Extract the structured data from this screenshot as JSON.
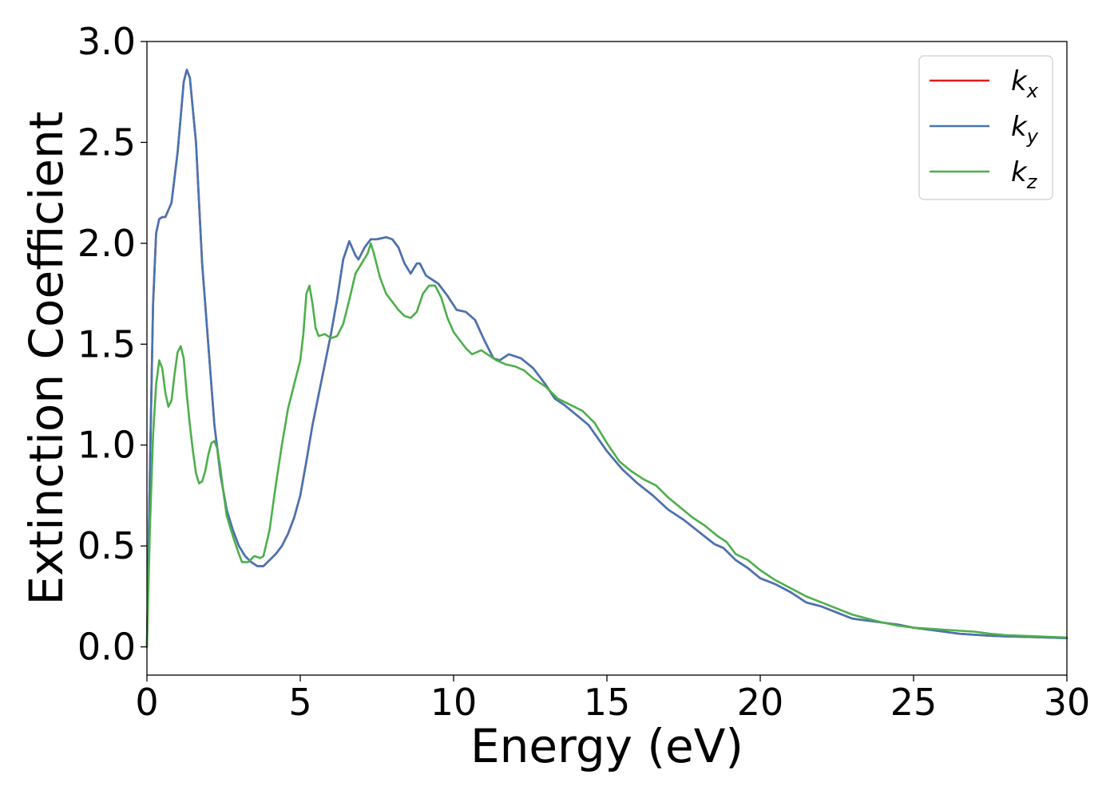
{
  "chart_data": {
    "type": "line",
    "xlabel": "Energy (eV)",
    "ylabel": "Extinction Coefficient",
    "xlim": [
      0,
      30
    ],
    "ylim": [
      -0.14,
      3.0
    ],
    "xticks": [
      0,
      5,
      10,
      15,
      20,
      25,
      30
    ],
    "xtick_labels": [
      "0",
      "5",
      "10",
      "15",
      "20",
      "25",
      "30"
    ],
    "yticks": [
      0.0,
      0.5,
      1.0,
      1.5,
      2.0,
      2.5,
      3.0
    ],
    "ytick_labels": [
      "0.0",
      "0.5",
      "1.0",
      "1.5",
      "2.0",
      "2.5",
      "3.0"
    ],
    "grid": false,
    "legend_position": "top-right",
    "series": [
      {
        "name": "k_x",
        "legend_base": "k",
        "legend_sub": "x",
        "color": "#e41a1c",
        "points": [
          [
            0,
            0
          ],
          [
            0.1,
            0.9
          ],
          [
            0.2,
            1.7
          ],
          [
            0.3,
            2.05
          ],
          [
            0.4,
            2.12
          ],
          [
            0.5,
            2.13
          ],
          [
            0.6,
            2.13
          ],
          [
            0.8,
            2.2
          ],
          [
            1.0,
            2.45
          ],
          [
            1.2,
            2.8
          ],
          [
            1.3,
            2.86
          ],
          [
            1.4,
            2.82
          ],
          [
            1.6,
            2.5
          ],
          [
            1.8,
            1.9
          ],
          [
            2.0,
            1.5
          ],
          [
            2.2,
            1.1
          ],
          [
            2.4,
            0.85
          ],
          [
            2.6,
            0.68
          ],
          [
            2.8,
            0.58
          ],
          [
            3.0,
            0.5
          ],
          [
            3.2,
            0.45
          ],
          [
            3.4,
            0.42
          ],
          [
            3.6,
            0.4
          ],
          [
            3.8,
            0.4
          ],
          [
            4.0,
            0.43
          ],
          [
            4.2,
            0.46
          ],
          [
            4.4,
            0.5
          ],
          [
            4.6,
            0.56
          ],
          [
            4.8,
            0.64
          ],
          [
            5.0,
            0.75
          ],
          [
            5.2,
            0.92
          ],
          [
            5.4,
            1.1
          ],
          [
            5.6,
            1.25
          ],
          [
            5.8,
            1.4
          ],
          [
            6.0,
            1.55
          ],
          [
            6.2,
            1.72
          ],
          [
            6.4,
            1.92
          ],
          [
            6.6,
            2.01
          ],
          [
            6.8,
            1.94
          ],
          [
            6.9,
            1.92
          ],
          [
            7.1,
            1.98
          ],
          [
            7.3,
            2.02
          ],
          [
            7.5,
            2.02
          ],
          [
            7.8,
            2.03
          ],
          [
            8.0,
            2.02
          ],
          [
            8.2,
            1.98
          ],
          [
            8.4,
            1.9
          ],
          [
            8.6,
            1.85
          ],
          [
            8.8,
            1.9
          ],
          [
            8.9,
            1.9
          ],
          [
            9.1,
            1.84
          ],
          [
            9.3,
            1.82
          ],
          [
            9.5,
            1.8
          ],
          [
            9.8,
            1.74
          ],
          [
            10.1,
            1.67
          ],
          [
            10.4,
            1.66
          ],
          [
            10.7,
            1.62
          ],
          [
            11.0,
            1.52
          ],
          [
            11.3,
            1.43
          ],
          [
            11.5,
            1.42
          ],
          [
            11.8,
            1.45
          ],
          [
            12.2,
            1.43
          ],
          [
            12.6,
            1.38
          ],
          [
            13.0,
            1.3
          ],
          [
            13.3,
            1.23
          ],
          [
            13.6,
            1.2
          ],
          [
            14.0,
            1.15
          ],
          [
            14.4,
            1.1
          ],
          [
            15.0,
            0.97
          ],
          [
            15.5,
            0.88
          ],
          [
            16.0,
            0.81
          ],
          [
            16.5,
            0.75
          ],
          [
            17.0,
            0.68
          ],
          [
            17.5,
            0.63
          ],
          [
            18.0,
            0.57
          ],
          [
            18.5,
            0.51
          ],
          [
            18.8,
            0.49
          ],
          [
            19.2,
            0.43
          ],
          [
            19.6,
            0.39
          ],
          [
            20.0,
            0.34
          ],
          [
            20.5,
            0.31
          ],
          [
            21.0,
            0.27
          ],
          [
            21.5,
            0.22
          ],
          [
            22.0,
            0.2
          ],
          [
            22.5,
            0.17
          ],
          [
            23.0,
            0.14
          ],
          [
            23.5,
            0.13
          ],
          [
            24.0,
            0.12
          ],
          [
            24.5,
            0.11
          ],
          [
            25.0,
            0.095
          ],
          [
            25.5,
            0.085
          ],
          [
            26.0,
            0.075
          ],
          [
            26.5,
            0.065
          ],
          [
            27.0,
            0.06
          ],
          [
            27.5,
            0.055
          ],
          [
            28.0,
            0.052
          ],
          [
            29.0,
            0.048
          ],
          [
            30.0,
            0.043
          ]
        ]
      },
      {
        "name": "k_y",
        "legend_base": "k",
        "legend_sub": "y",
        "color": "#4575b4",
        "points": [
          [
            0,
            0
          ],
          [
            0.1,
            0.9
          ],
          [
            0.2,
            1.7
          ],
          [
            0.3,
            2.05
          ],
          [
            0.4,
            2.12
          ],
          [
            0.5,
            2.13
          ],
          [
            0.6,
            2.13
          ],
          [
            0.8,
            2.2
          ],
          [
            1.0,
            2.45
          ],
          [
            1.2,
            2.8
          ],
          [
            1.3,
            2.86
          ],
          [
            1.4,
            2.82
          ],
          [
            1.6,
            2.5
          ],
          [
            1.8,
            1.9
          ],
          [
            2.0,
            1.5
          ],
          [
            2.2,
            1.1
          ],
          [
            2.4,
            0.85
          ],
          [
            2.6,
            0.68
          ],
          [
            2.8,
            0.58
          ],
          [
            3.0,
            0.5
          ],
          [
            3.2,
            0.45
          ],
          [
            3.4,
            0.42
          ],
          [
            3.6,
            0.4
          ],
          [
            3.8,
            0.4
          ],
          [
            4.0,
            0.43
          ],
          [
            4.2,
            0.46
          ],
          [
            4.4,
            0.5
          ],
          [
            4.6,
            0.56
          ],
          [
            4.8,
            0.64
          ],
          [
            5.0,
            0.75
          ],
          [
            5.2,
            0.92
          ],
          [
            5.4,
            1.1
          ],
          [
            5.6,
            1.25
          ],
          [
            5.8,
            1.4
          ],
          [
            6.0,
            1.55
          ],
          [
            6.2,
            1.72
          ],
          [
            6.4,
            1.92
          ],
          [
            6.6,
            2.01
          ],
          [
            6.8,
            1.94
          ],
          [
            6.9,
            1.92
          ],
          [
            7.1,
            1.98
          ],
          [
            7.3,
            2.02
          ],
          [
            7.5,
            2.02
          ],
          [
            7.8,
            2.03
          ],
          [
            8.0,
            2.02
          ],
          [
            8.2,
            1.98
          ],
          [
            8.4,
            1.9
          ],
          [
            8.6,
            1.85
          ],
          [
            8.8,
            1.9
          ],
          [
            8.9,
            1.9
          ],
          [
            9.1,
            1.84
          ],
          [
            9.3,
            1.82
          ],
          [
            9.5,
            1.8
          ],
          [
            9.8,
            1.74
          ],
          [
            10.1,
            1.67
          ],
          [
            10.4,
            1.66
          ],
          [
            10.7,
            1.62
          ],
          [
            11.0,
            1.52
          ],
          [
            11.3,
            1.43
          ],
          [
            11.5,
            1.42
          ],
          [
            11.8,
            1.45
          ],
          [
            12.2,
            1.43
          ],
          [
            12.6,
            1.38
          ],
          [
            13.0,
            1.3
          ],
          [
            13.3,
            1.23
          ],
          [
            13.6,
            1.2
          ],
          [
            14.0,
            1.15
          ],
          [
            14.4,
            1.1
          ],
          [
            15.0,
            0.97
          ],
          [
            15.5,
            0.88
          ],
          [
            16.0,
            0.81
          ],
          [
            16.5,
            0.75
          ],
          [
            17.0,
            0.68
          ],
          [
            17.5,
            0.63
          ],
          [
            18.0,
            0.57
          ],
          [
            18.5,
            0.51
          ],
          [
            18.8,
            0.49
          ],
          [
            19.2,
            0.43
          ],
          [
            19.6,
            0.39
          ],
          [
            20.0,
            0.34
          ],
          [
            20.5,
            0.31
          ],
          [
            21.0,
            0.27
          ],
          [
            21.5,
            0.22
          ],
          [
            22.0,
            0.2
          ],
          [
            22.5,
            0.17
          ],
          [
            23.0,
            0.14
          ],
          [
            23.5,
            0.13
          ],
          [
            24.0,
            0.12
          ],
          [
            24.5,
            0.11
          ],
          [
            25.0,
            0.095
          ],
          [
            25.5,
            0.085
          ],
          [
            26.0,
            0.075
          ],
          [
            26.5,
            0.065
          ],
          [
            27.0,
            0.06
          ],
          [
            27.5,
            0.055
          ],
          [
            28.0,
            0.052
          ],
          [
            29.0,
            0.048
          ],
          [
            30.0,
            0.043
          ]
        ]
      },
      {
        "name": "k_z",
        "legend_base": "k",
        "legend_sub": "z",
        "color": "#4daf4a",
        "points": [
          [
            0,
            0
          ],
          [
            0.1,
            0.6
          ],
          [
            0.2,
            1.05
          ],
          [
            0.3,
            1.3
          ],
          [
            0.4,
            1.42
          ],
          [
            0.5,
            1.38
          ],
          [
            0.6,
            1.26
          ],
          [
            0.7,
            1.19
          ],
          [
            0.8,
            1.22
          ],
          [
            0.9,
            1.35
          ],
          [
            1.0,
            1.46
          ],
          [
            1.1,
            1.49
          ],
          [
            1.2,
            1.43
          ],
          [
            1.3,
            1.25
          ],
          [
            1.4,
            1.1
          ],
          [
            1.5,
            0.97
          ],
          [
            1.6,
            0.86
          ],
          [
            1.7,
            0.81
          ],
          [
            1.8,
            0.82
          ],
          [
            1.9,
            0.87
          ],
          [
            2.0,
            0.95
          ],
          [
            2.1,
            1.01
          ],
          [
            2.2,
            1.02
          ],
          [
            2.3,
            0.98
          ],
          [
            2.4,
            0.88
          ],
          [
            2.5,
            0.76
          ],
          [
            2.6,
            0.65
          ],
          [
            2.8,
            0.55
          ],
          [
            3.0,
            0.46
          ],
          [
            3.1,
            0.42
          ],
          [
            3.3,
            0.42
          ],
          [
            3.5,
            0.45
          ],
          [
            3.7,
            0.44
          ],
          [
            3.8,
            0.45
          ],
          [
            4.0,
            0.58
          ],
          [
            4.2,
            0.8
          ],
          [
            4.4,
            1.0
          ],
          [
            4.6,
            1.18
          ],
          [
            4.8,
            1.3
          ],
          [
            5.0,
            1.42
          ],
          [
            5.1,
            1.55
          ],
          [
            5.2,
            1.75
          ],
          [
            5.3,
            1.79
          ],
          [
            5.4,
            1.7
          ],
          [
            5.5,
            1.58
          ],
          [
            5.6,
            1.54
          ],
          [
            5.8,
            1.55
          ],
          [
            6.0,
            1.53
          ],
          [
            6.2,
            1.54
          ],
          [
            6.4,
            1.6
          ],
          [
            6.6,
            1.72
          ],
          [
            6.8,
            1.85
          ],
          [
            7.0,
            1.9
          ],
          [
            7.2,
            1.95
          ],
          [
            7.3,
            2.0
          ],
          [
            7.4,
            1.95
          ],
          [
            7.6,
            1.83
          ],
          [
            7.8,
            1.75
          ],
          [
            8.0,
            1.71
          ],
          [
            8.2,
            1.67
          ],
          [
            8.4,
            1.64
          ],
          [
            8.6,
            1.63
          ],
          [
            8.8,
            1.66
          ],
          [
            9.0,
            1.75
          ],
          [
            9.2,
            1.79
          ],
          [
            9.4,
            1.79
          ],
          [
            9.6,
            1.73
          ],
          [
            9.8,
            1.63
          ],
          [
            10.0,
            1.56
          ],
          [
            10.2,
            1.52
          ],
          [
            10.4,
            1.48
          ],
          [
            10.6,
            1.45
          ],
          [
            10.9,
            1.47
          ],
          [
            11.1,
            1.45
          ],
          [
            11.4,
            1.42
          ],
          [
            11.7,
            1.4
          ],
          [
            12.0,
            1.39
          ],
          [
            12.3,
            1.37
          ],
          [
            12.6,
            1.33
          ],
          [
            13.0,
            1.29
          ],
          [
            13.4,
            1.23
          ],
          [
            13.8,
            1.2
          ],
          [
            14.2,
            1.17
          ],
          [
            14.6,
            1.11
          ],
          [
            15.0,
            1.01
          ],
          [
            15.4,
            0.92
          ],
          [
            15.8,
            0.87
          ],
          [
            16.2,
            0.83
          ],
          [
            16.6,
            0.8
          ],
          [
            17.0,
            0.74
          ],
          [
            17.4,
            0.69
          ],
          [
            17.8,
            0.64
          ],
          [
            18.2,
            0.6
          ],
          [
            18.6,
            0.55
          ],
          [
            18.9,
            0.52
          ],
          [
            19.2,
            0.46
          ],
          [
            19.6,
            0.43
          ],
          [
            20.0,
            0.38
          ],
          [
            20.5,
            0.33
          ],
          [
            21.0,
            0.29
          ],
          [
            21.5,
            0.25
          ],
          [
            22.0,
            0.22
          ],
          [
            22.5,
            0.19
          ],
          [
            23.0,
            0.16
          ],
          [
            23.5,
            0.14
          ],
          [
            24.0,
            0.12
          ],
          [
            24.5,
            0.105
          ],
          [
            25.0,
            0.095
          ],
          [
            25.5,
            0.09
          ],
          [
            26.0,
            0.085
          ],
          [
            26.5,
            0.08
          ],
          [
            27.0,
            0.075
          ],
          [
            27.5,
            0.065
          ],
          [
            28.0,
            0.058
          ],
          [
            29.0,
            0.052
          ],
          [
            30.0,
            0.046
          ]
        ]
      }
    ]
  }
}
